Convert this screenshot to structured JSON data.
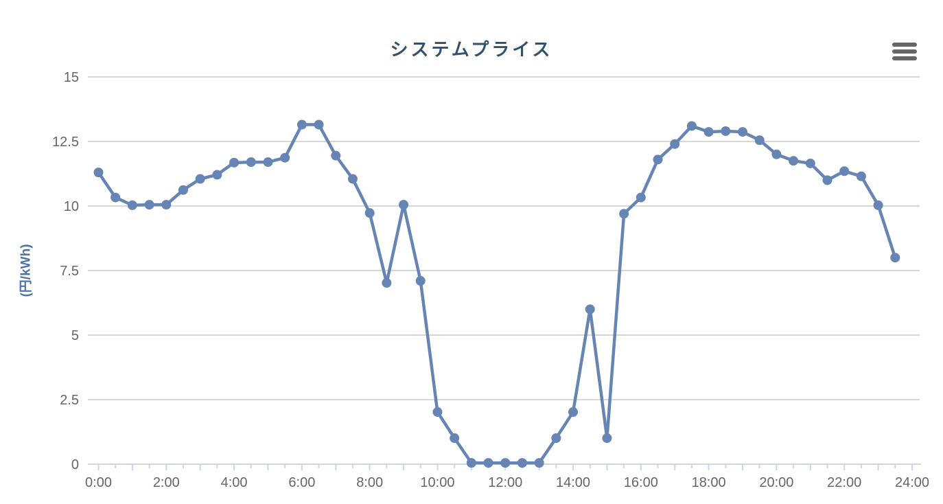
{
  "chart_data": {
    "type": "line",
    "title": "システムプライス",
    "ylabel": "(円/kWh)",
    "ylim": [
      0,
      15
    ],
    "yticks": [
      0,
      2.5,
      5,
      7.5,
      10,
      12.5,
      15
    ],
    "ytick_labels": [
      "0",
      "2.5",
      "5",
      "7.5",
      "10",
      "12.5",
      "15"
    ],
    "xtick_labels": [
      "0:00",
      "2:00",
      "4:00",
      "6:00",
      "8:00",
      "10:00",
      "12:00",
      "14:00",
      "16:00",
      "18:00",
      "20:00",
      "22:00",
      "24:00"
    ],
    "grid": true,
    "legend": "none",
    "x": [
      "0:00",
      "0:30",
      "1:00",
      "1:30",
      "2:00",
      "2:30",
      "3:00",
      "3:30",
      "4:00",
      "4:30",
      "5:00",
      "5:30",
      "6:00",
      "6:30",
      "7:00",
      "7:30",
      "8:00",
      "8:30",
      "9:00",
      "9:30",
      "10:00",
      "10:30",
      "11:00",
      "11:30",
      "12:00",
      "12:30",
      "13:00",
      "13:30",
      "14:00",
      "14:30",
      "15:00",
      "15:30",
      "16:00",
      "16:30",
      "17:00",
      "17:30",
      "18:00",
      "18:30",
      "19:00",
      "19:30",
      "20:00",
      "20:30",
      "21:00",
      "21:30",
      "22:00",
      "22:30",
      "23:00",
      "23:30"
    ],
    "values": [
      11.3,
      10.33,
      10.03,
      10.05,
      10.05,
      10.62,
      11.05,
      11.21,
      11.68,
      11.7,
      11.7,
      11.87,
      13.15,
      13.15,
      11.95,
      11.05,
      9.73,
      7.02,
      10.05,
      7.1,
      2.02,
      1.01,
      0.05,
      0.05,
      0.05,
      0.05,
      0.05,
      1.01,
      2.02,
      6.0,
      1.01,
      9.7,
      10.33,
      11.8,
      12.4,
      13.1,
      12.87,
      12.9,
      12.87,
      12.55,
      12.0,
      11.75,
      11.65,
      11.0,
      11.35,
      11.15,
      10.03,
      8.0
    ]
  },
  "icons": {
    "menu": "hamburger-menu-icon"
  },
  "colors": {
    "series": "#6685b5",
    "gridline": "#cccccc",
    "axis_line": "#ccd6eb",
    "tick_label": "#666666",
    "title": "#33506e",
    "ylabel": "#4a74a8",
    "menu_icon": "#666666"
  }
}
